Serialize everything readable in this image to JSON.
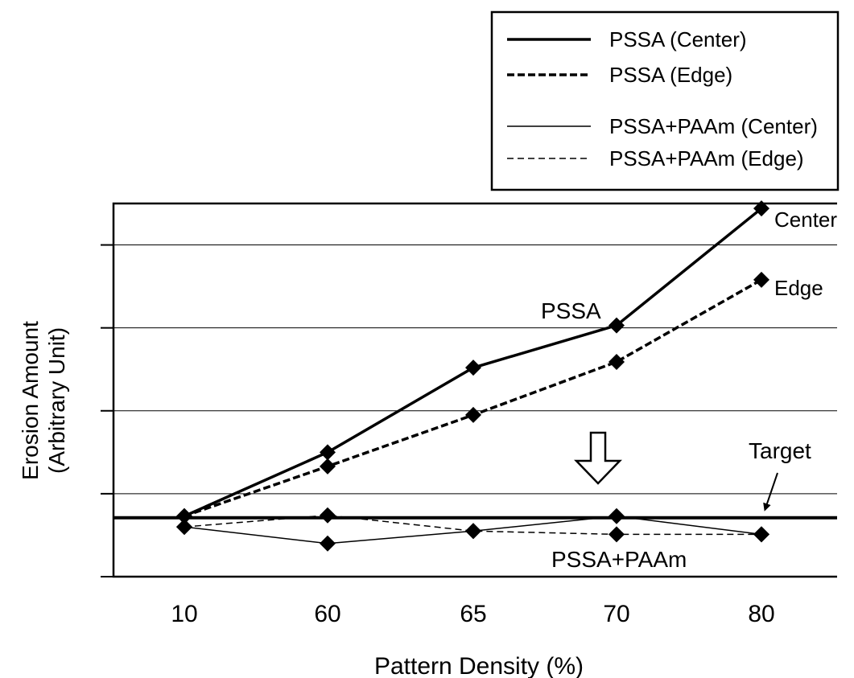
{
  "chart_data": {
    "type": "line",
    "xlabel": "Pattern Density (%)",
    "ylabel_line1": "Erosion Amount",
    "ylabel_line2": "(Arbitrary Unit)",
    "categories": [
      "10",
      "60",
      "65",
      "70",
      "80"
    ],
    "ylim": [
      0,
      4.5
    ],
    "yticks": [
      1,
      2,
      3,
      4
    ],
    "grid": true,
    "legend_position": "top-right",
    "series": [
      {
        "name": "PSSA (Center)",
        "style": "thick-solid",
        "values": [
          0.73,
          1.5,
          2.52,
          3.03,
          4.44
        ]
      },
      {
        "name": "PSSA (Edge)",
        "style": "thick-dashed",
        "values": [
          0.73,
          1.33,
          1.95,
          2.59,
          3.58
        ]
      },
      {
        "name": "PSSA+PAAm (Center)",
        "style": "thin-solid",
        "values": [
          0.6,
          0.4,
          0.55,
          0.73,
          0.51
        ]
      },
      {
        "name": "PSSA+PAAm (Edge)",
        "style": "thin-dashed",
        "values": [
          0.6,
          0.74,
          0.55,
          0.51,
          0.51
        ]
      }
    ],
    "target": {
      "value": 0.71,
      "label": "Target"
    },
    "annotations": {
      "pssa": "PSSA",
      "pssa_paam": "PSSA+PAAm",
      "center": "Center",
      "edge": "Edge"
    },
    "colors": {
      "line": "#000000",
      "grid": "#000000",
      "background": "#ffffff"
    }
  }
}
